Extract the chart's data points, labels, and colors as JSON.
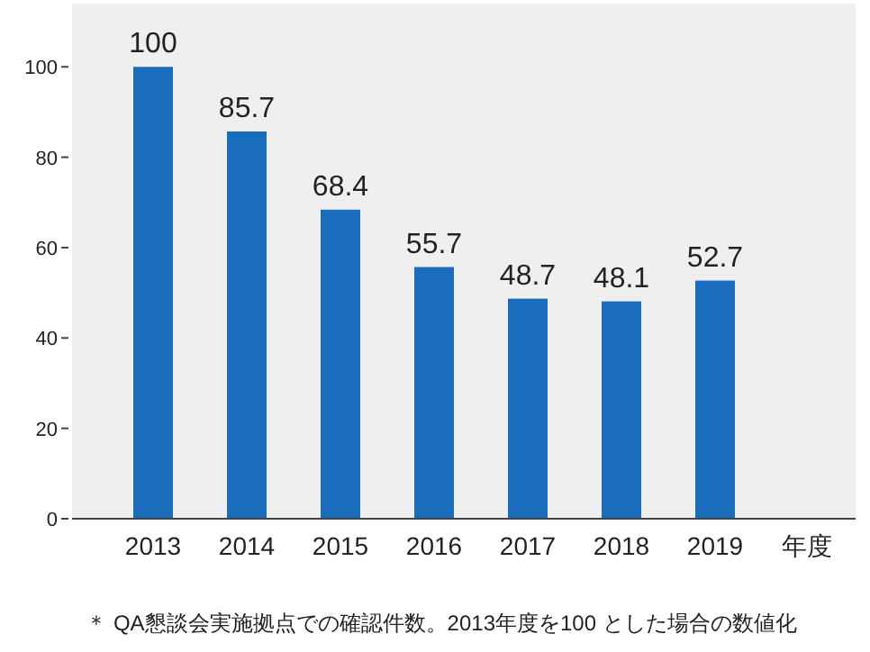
{
  "chart_data": {
    "type": "bar",
    "categories": [
      "2013",
      "2014",
      "2015",
      "2016",
      "2017",
      "2018",
      "2019"
    ],
    "values": [
      100,
      85.7,
      68.4,
      55.7,
      48.7,
      48.1,
      52.7
    ],
    "color": "#1a6dbd",
    "ylim": [
      0,
      114
    ],
    "yticks": [
      0,
      20,
      40,
      60,
      80,
      100
    ],
    "data_labels": true,
    "xlabel": "年度",
    "annotations": [
      "＊ QA懇談会実施拠点での確認件数。2013年度を100 とした場合の数値化"
    ]
  }
}
